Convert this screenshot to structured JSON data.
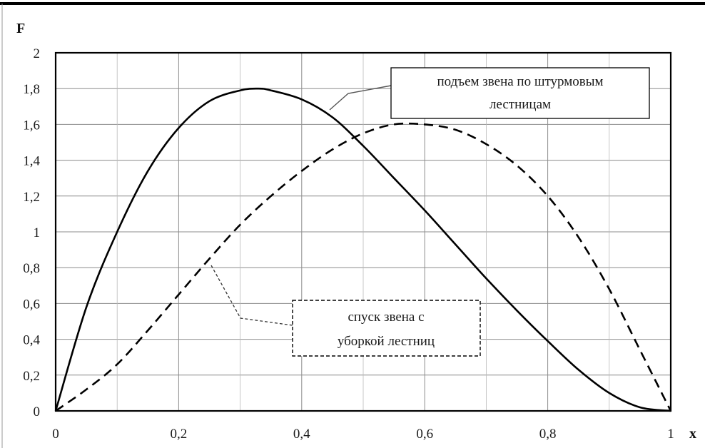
{
  "chart_data": {
    "type": "line",
    "xlabel": "x",
    "ylabel": "F",
    "xlim": [
      0,
      1
    ],
    "ylim": [
      0,
      2
    ],
    "x_ticks": [
      0,
      0.2,
      0.4,
      0.6,
      0.8,
      1
    ],
    "x_tick_labels": [
      "0",
      "0,2",
      "0,4",
      "0,6",
      "0,8",
      "1"
    ],
    "x_minor_grid": [
      0.1,
      0.3,
      0.5,
      0.7,
      0.9
    ],
    "y_ticks": [
      0,
      0.2,
      0.4,
      0.6,
      0.8,
      1,
      1.2,
      1.4,
      1.6,
      1.8,
      2
    ],
    "y_tick_labels": [
      "0",
      "0,2",
      "0,4",
      "0,6",
      "0,8",
      "1",
      "1,2",
      "1,4",
      "1,6",
      "1,8",
      "2"
    ],
    "grid": true,
    "series": [
      {
        "name": "подъем звена по штурмовым лестницам",
        "style": "solid",
        "color": "#000000",
        "x": [
          0,
          0.05,
          0.1,
          0.15,
          0.2,
          0.25,
          0.3,
          0.33,
          0.35,
          0.4,
          0.45,
          0.5,
          0.55,
          0.6,
          0.65,
          0.7,
          0.75,
          0.8,
          0.85,
          0.9,
          0.95,
          1
        ],
        "y": [
          0,
          0.58,
          1.0,
          1.34,
          1.58,
          1.73,
          1.79,
          1.8,
          1.79,
          1.74,
          1.64,
          1.48,
          1.3,
          1.12,
          0.93,
          0.74,
          0.56,
          0.39,
          0.23,
          0.1,
          0.02,
          0
        ]
      },
      {
        "name": "спуск звена с уборкой лестниц",
        "style": "dashed",
        "color": "#000000",
        "x": [
          0,
          0.05,
          0.1,
          0.15,
          0.2,
          0.25,
          0.3,
          0.35,
          0.4,
          0.45,
          0.5,
          0.55,
          0.6,
          0.65,
          0.7,
          0.75,
          0.8,
          0.85,
          0.9,
          0.95,
          1
        ],
        "y": [
          0,
          0.12,
          0.26,
          0.45,
          0.65,
          0.85,
          1.04,
          1.2,
          1.34,
          1.46,
          1.55,
          1.6,
          1.6,
          1.57,
          1.49,
          1.37,
          1.2,
          0.97,
          0.68,
          0.34,
          0
        ]
      }
    ],
    "annotations": [
      {
        "text": [
          "подъем звена по штурмовым",
          "лестницам"
        ],
        "series": 0,
        "style": "solid-box"
      },
      {
        "text": [
          "спуск звена с",
          "уборкой лестниц"
        ],
        "series": 1,
        "style": "dashed-box"
      }
    ]
  }
}
